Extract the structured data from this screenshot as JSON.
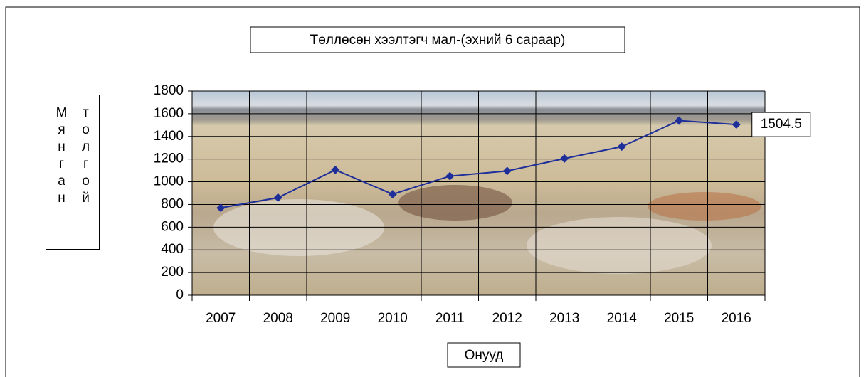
{
  "chart_data": {
    "type": "line",
    "title": "Төллөсөн хээлтэгч  мал-(эхний 6 сараар)",
    "x_label": "Онууд",
    "y_label": "Мянган толгой",
    "categories": [
      "2007",
      "2008",
      "2009",
      "2010",
      "2011",
      "2012",
      "2013",
      "2014",
      "2015",
      "2016"
    ],
    "values": [
      770,
      860,
      1105,
      890,
      1050,
      1095,
      1205,
      1310,
      1540,
      1504.5
    ],
    "value_labels": [
      null,
      null,
      null,
      null,
      null,
      null,
      null,
      null,
      null,
      "1504.5"
    ],
    "color": "#1f2f9a",
    "ylim": [
      0,
      1800
    ],
    "yticks": [
      0,
      200,
      400,
      600,
      800,
      1000,
      1200,
      1400,
      1600,
      1800
    ],
    "grid": true
  }
}
